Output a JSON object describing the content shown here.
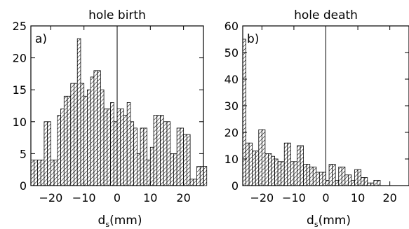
{
  "chart_data": [
    {
      "type": "bar",
      "panel_label": "a)",
      "title": "hole birth",
      "xlabel_main": "d",
      "xlabel_sub": "s",
      "xlabel_unit": "(mm)",
      "xlim": [
        -26,
        26
      ],
      "ylim": [
        0,
        25
      ],
      "xticks": [
        -20,
        -10,
        0,
        10,
        20
      ],
      "yticks": [
        0,
        5,
        10,
        15,
        20,
        25
      ],
      "xtick_labels": [
        "−20",
        "−10",
        "0",
        "10",
        "20"
      ],
      "ytick_labels": [
        "0",
        "5",
        "10",
        "15",
        "20",
        "25"
      ],
      "bin_width": 1,
      "bin_start": -26,
      "values": [
        4,
        4,
        4,
        4,
        10,
        10,
        4,
        4,
        11,
        12,
        14,
        14,
        16,
        16,
        23,
        16,
        14,
        15,
        17,
        18,
        18,
        15,
        12,
        12,
        13,
        10,
        12,
        12,
        11,
        13,
        10,
        9,
        5,
        9,
        9,
        4,
        6,
        11,
        11,
        11,
        10,
        10,
        5,
        5,
        9,
        9,
        8,
        8,
        1,
        1,
        3,
        3,
        3,
        0,
        0
      ],
      "reference_line_x": 0,
      "hatch": "diagonal",
      "grid": false
    },
    {
      "type": "bar",
      "panel_label": "b)",
      "title": "hole death",
      "xlabel_main": "d",
      "xlabel_sub": "s",
      "xlabel_unit": "(mm)",
      "xlim": [
        -26,
        26
      ],
      "ylim": [
        0,
        60
      ],
      "xticks": [
        -20,
        -10,
        0,
        10,
        20
      ],
      "yticks": [
        0,
        10,
        20,
        30,
        40,
        50,
        60
      ],
      "xtick_labels": [
        "−20",
        "−10",
        "0",
        "10",
        "20"
      ],
      "ytick_labels": [
        "0",
        "10",
        "20",
        "30",
        "40",
        "50",
        "60"
      ],
      "bin_width": 1,
      "bin_start": -26,
      "values": [
        55,
        16,
        16,
        13,
        13,
        21,
        21,
        12,
        12,
        11,
        10,
        9,
        9,
        16,
        16,
        9,
        9,
        15,
        15,
        8,
        8,
        7,
        7,
        5,
        5,
        5,
        2,
        8,
        8,
        2,
        7,
        7,
        4,
        4,
        2,
        6,
        6,
        3,
        3,
        1,
        1,
        2,
        2,
        0
      ],
      "reference_line_x": 0,
      "hatch": "diagonal",
      "grid": false
    }
  ]
}
